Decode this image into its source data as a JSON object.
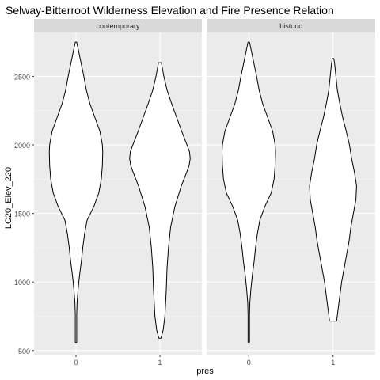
{
  "chart_data": {
    "type": "violin",
    "title": "Selway-Bitterroot Wilderness Elevation and Fire Presence Relation",
    "xlabel": "pres",
    "ylabel": "LC20_Elev_220",
    "categories": [
      "0",
      "1"
    ],
    "ylim": [
      470,
      2820
    ],
    "yticks": [
      500,
      1000,
      1500,
      2000,
      2500
    ],
    "grid": true,
    "panel_background": "#ebebeb",
    "strip_background": "#d9d9d9",
    "panels": [
      {
        "name": "contemporary",
        "violins": [
          {
            "category": "0",
            "profile": [
              [
                560,
                0.02
              ],
              [
                600,
                0.02
              ],
              [
                700,
                0.02
              ],
              [
                760,
                0.02
              ],
              [
                850,
                0.03
              ],
              [
                950,
                0.06
              ],
              [
                1050,
                0.1
              ],
              [
                1150,
                0.15
              ],
              [
                1250,
                0.19
              ],
              [
                1350,
                0.24
              ],
              [
                1450,
                0.31
              ],
              [
                1550,
                0.5
              ],
              [
                1650,
                0.64
              ],
              [
                1750,
                0.71
              ],
              [
                1850,
                0.74
              ],
              [
                1950,
                0.75
              ],
              [
                2000,
                0.74
              ],
              [
                2100,
                0.67
              ],
              [
                2200,
                0.53
              ],
              [
                2300,
                0.39
              ],
              [
                2400,
                0.29
              ],
              [
                2500,
                0.22
              ],
              [
                2600,
                0.14
              ],
              [
                2700,
                0.06
              ],
              [
                2750,
                0.02
              ]
            ]
          },
          {
            "category": "1",
            "profile": [
              [
                590,
                0.03
              ],
              [
                650,
                0.09
              ],
              [
                750,
                0.14
              ],
              [
                850,
                0.16
              ],
              [
                950,
                0.18
              ],
              [
                1100,
                0.2
              ],
              [
                1250,
                0.24
              ],
              [
                1400,
                0.3
              ],
              [
                1550,
                0.42
              ],
              [
                1700,
                0.6
              ],
              [
                1800,
                0.75
              ],
              [
                1850,
                0.82
              ],
              [
                1900,
                0.85
              ],
              [
                1950,
                0.83
              ],
              [
                2000,
                0.76
              ],
              [
                2100,
                0.61
              ],
              [
                2200,
                0.47
              ],
              [
                2300,
                0.33
              ],
              [
                2400,
                0.2
              ],
              [
                2500,
                0.11
              ],
              [
                2600,
                0.04
              ]
            ]
          }
        ]
      },
      {
        "name": "historic",
        "violins": [
          {
            "category": "0",
            "profile": [
              [
                560,
                0.02
              ],
              [
                600,
                0.02
              ],
              [
                700,
                0.02
              ],
              [
                760,
                0.02
              ],
              [
                850,
                0.03
              ],
              [
                950,
                0.06
              ],
              [
                1050,
                0.1
              ],
              [
                1150,
                0.15
              ],
              [
                1250,
                0.19
              ],
              [
                1350,
                0.24
              ],
              [
                1450,
                0.31
              ],
              [
                1550,
                0.45
              ],
              [
                1650,
                0.63
              ],
              [
                1750,
                0.71
              ],
              [
                1850,
                0.74
              ],
              [
                1950,
                0.75
              ],
              [
                2000,
                0.74
              ],
              [
                2100,
                0.67
              ],
              [
                2200,
                0.53
              ],
              [
                2300,
                0.39
              ],
              [
                2400,
                0.29
              ],
              [
                2500,
                0.22
              ],
              [
                2600,
                0.14
              ],
              [
                2700,
                0.06
              ],
              [
                2750,
                0.02
              ]
            ]
          },
          {
            "category": "1",
            "profile": [
              [
                715,
                0.1
              ],
              [
                800,
                0.14
              ],
              [
                900,
                0.19
              ],
              [
                1000,
                0.24
              ],
              [
                1100,
                0.31
              ],
              [
                1200,
                0.38
              ],
              [
                1300,
                0.45
              ],
              [
                1400,
                0.5
              ],
              [
                1500,
                0.57
              ],
              [
                1600,
                0.64
              ],
              [
                1700,
                0.66
              ],
              [
                1800,
                0.6
              ],
              [
                1900,
                0.52
              ],
              [
                2000,
                0.46
              ],
              [
                2100,
                0.37
              ],
              [
                2200,
                0.27
              ],
              [
                2300,
                0.19
              ],
              [
                2400,
                0.12
              ],
              [
                2500,
                0.08
              ],
              [
                2600,
                0.04
              ],
              [
                2630,
                0.02
              ]
            ]
          }
        ]
      }
    ]
  }
}
